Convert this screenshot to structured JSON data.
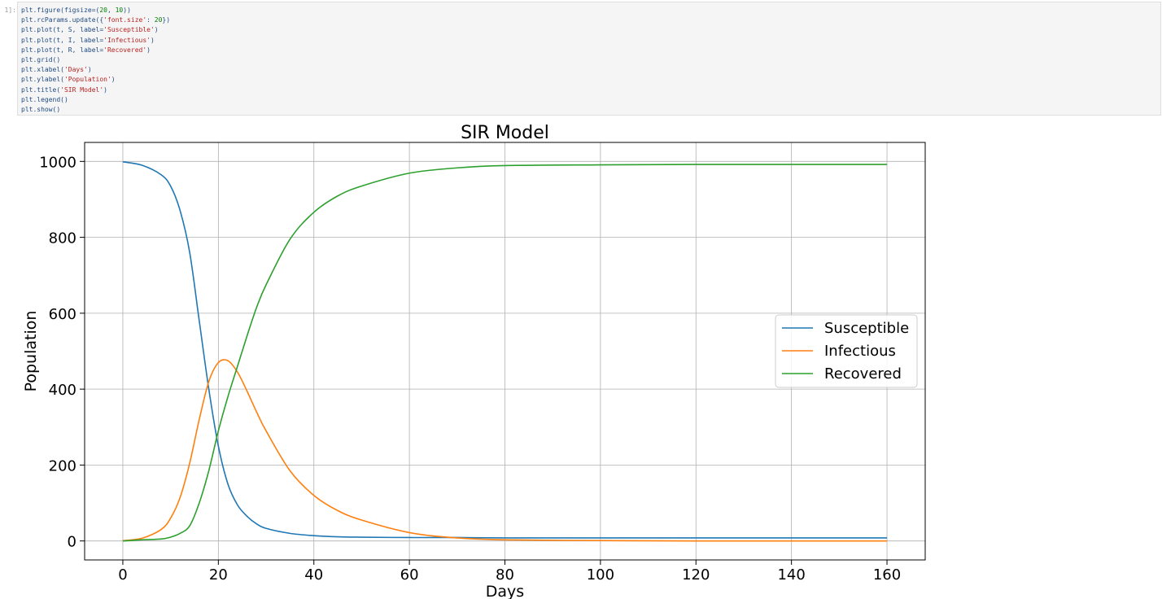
{
  "cell": {
    "prompt": "1]:",
    "code": [
      [
        {
          "t": "plt.figure(figsize=(",
          "c": "f"
        },
        {
          "t": "20",
          "c": "n"
        },
        {
          "t": ", ",
          "c": "f"
        },
        {
          "t": "10",
          "c": "n"
        },
        {
          "t": "))",
          "c": "f"
        }
      ],
      [
        {
          "t": "plt.rcParams.update({",
          "c": "f"
        },
        {
          "t": "'font.size'",
          "c": "s"
        },
        {
          "t": ": ",
          "c": "f"
        },
        {
          "t": "20",
          "c": "n"
        },
        {
          "t": "})",
          "c": "f"
        }
      ],
      [
        {
          "t": "plt.plot(t, S, label=",
          "c": "f"
        },
        {
          "t": "'Susceptible'",
          "c": "s"
        },
        {
          "t": ")",
          "c": "f"
        }
      ],
      [
        {
          "t": "plt.plot(t, I, label=",
          "c": "f"
        },
        {
          "t": "'Infectious'",
          "c": "s"
        },
        {
          "t": ")",
          "c": "f"
        }
      ],
      [
        {
          "t": "plt.plot(t, R, label=",
          "c": "f"
        },
        {
          "t": "'Recovered'",
          "c": "s"
        },
        {
          "t": ")",
          "c": "f"
        }
      ],
      [
        {
          "t": "plt.grid()",
          "c": "f"
        }
      ],
      [
        {
          "t": "plt.xlabel(",
          "c": "f"
        },
        {
          "t": "'Days'",
          "c": "s"
        },
        {
          "t": ")",
          "c": "f"
        }
      ],
      [
        {
          "t": "plt.ylabel(",
          "c": "f"
        },
        {
          "t": "'Population'",
          "c": "s"
        },
        {
          "t": ")",
          "c": "f"
        }
      ],
      [
        {
          "t": "plt.title(",
          "c": "f"
        },
        {
          "t": "'SIR Model'",
          "c": "s"
        },
        {
          "t": ")",
          "c": "f"
        }
      ],
      [
        {
          "t": "plt.legend()",
          "c": "f"
        }
      ],
      [
        {
          "t": "plt.show()",
          "c": "f"
        }
      ]
    ]
  },
  "chart_data": {
    "type": "line",
    "title": "SIR Model",
    "xlabel": "Days",
    "ylabel": "Population",
    "xlim": [
      -8,
      168
    ],
    "ylim": [
      -50,
      1050
    ],
    "xticks": [
      0,
      20,
      40,
      60,
      80,
      100,
      120,
      140,
      160
    ],
    "yticks": [
      0,
      200,
      400,
      600,
      800,
      1000
    ],
    "grid": true,
    "legend": "center-right",
    "x": [
      0,
      4,
      8,
      10,
      12,
      14,
      16,
      18,
      20,
      22,
      24,
      26,
      28,
      30,
      35,
      40,
      45,
      50,
      60,
      70,
      80,
      100,
      120,
      140,
      160
    ],
    "series": [
      {
        "name": "Susceptible",
        "color": "#1f77b4",
        "values": [
          999,
          990,
          965,
          935,
          870,
          760,
          580,
          400,
          250,
          150,
          95,
          65,
          45,
          33,
          20,
          14,
          11,
          10,
          9,
          9,
          8,
          8,
          8,
          8,
          8
        ]
      },
      {
        "name": "Infectious",
        "color": "#ff7f0e",
        "values": [
          1,
          7,
          30,
          60,
          115,
          205,
          320,
          420,
          470,
          475,
          445,
          395,
          340,
          290,
          185,
          120,
          80,
          55,
          22,
          8,
          3,
          1,
          0,
          0,
          0
        ]
      },
      {
        "name": "Recovered",
        "color": "#2ca02c",
        "values": [
          0,
          3,
          5,
          10,
          20,
          40,
          100,
          185,
          290,
          380,
          460,
          540,
          615,
          675,
          795,
          866,
          909,
          935,
          969,
          983,
          989,
          991,
          992,
          992,
          992
        ]
      }
    ]
  }
}
